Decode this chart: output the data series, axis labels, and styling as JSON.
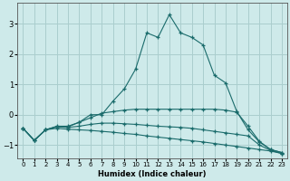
{
  "xlabel": "Humidex (Indice chaleur)",
  "bg_color": "#ceeaea",
  "grid_color": "#aacece",
  "line_color": "#1a6b6b",
  "xlim": [
    -0.5,
    23.5
  ],
  "ylim": [
    -1.45,
    3.7
  ],
  "xticks": [
    0,
    1,
    2,
    3,
    4,
    5,
    6,
    7,
    8,
    9,
    10,
    11,
    12,
    13,
    14,
    15,
    16,
    17,
    18,
    19,
    20,
    21,
    22,
    23
  ],
  "yticks": [
    -1,
    0,
    1,
    2,
    3
  ],
  "lines": [
    {
      "x": [
        0,
        1,
        2,
        3,
        4,
        5,
        6,
        7,
        8,
        9,
        10,
        11,
        12,
        13,
        14,
        15,
        16,
        17,
        18,
        19,
        20,
        21,
        22,
        23
      ],
      "y": [
        -0.45,
        -0.85,
        -0.5,
        -0.4,
        -0.4,
        -0.25,
        0.0,
        0.0,
        0.45,
        0.85,
        1.5,
        2.7,
        2.55,
        3.3,
        2.7,
        2.55,
        2.3,
        1.3,
        1.05,
        0.1,
        -0.5,
        -0.9,
        -1.15,
        -1.25
      ]
    },
    {
      "x": [
        0,
        1,
        2,
        3,
        4,
        5,
        6,
        7,
        8,
        9,
        10,
        11,
        12,
        13,
        14,
        15,
        16,
        17,
        18,
        19,
        20,
        21,
        22,
        23
      ],
      "y": [
        -0.45,
        -0.85,
        -0.5,
        -0.38,
        -0.38,
        -0.25,
        -0.1,
        0.05,
        0.1,
        0.15,
        0.18,
        0.18,
        0.18,
        0.18,
        0.18,
        0.18,
        0.18,
        0.18,
        0.15,
        0.08,
        -0.38,
        -0.88,
        -1.15,
        -1.25
      ]
    },
    {
      "x": [
        0,
        1,
        2,
        3,
        4,
        5,
        6,
        7,
        8,
        9,
        10,
        11,
        12,
        13,
        14,
        15,
        16,
        17,
        18,
        19,
        20,
        21,
        22,
        23
      ],
      "y": [
        -0.45,
        -0.85,
        -0.5,
        -0.4,
        -0.42,
        -0.38,
        -0.32,
        -0.28,
        -0.28,
        -0.3,
        -0.32,
        -0.35,
        -0.38,
        -0.4,
        -0.42,
        -0.45,
        -0.5,
        -0.55,
        -0.6,
        -0.65,
        -0.7,
        -1.0,
        -1.18,
        -1.28
      ]
    },
    {
      "x": [
        0,
        1,
        2,
        3,
        4,
        5,
        6,
        7,
        8,
        9,
        10,
        11,
        12,
        13,
        14,
        15,
        16,
        17,
        18,
        19,
        20,
        21,
        22,
        23
      ],
      "y": [
        -0.45,
        -0.85,
        -0.5,
        -0.45,
        -0.48,
        -0.5,
        -0.52,
        -0.55,
        -0.58,
        -0.62,
        -0.65,
        -0.7,
        -0.74,
        -0.78,
        -0.82,
        -0.86,
        -0.9,
        -0.95,
        -1.0,
        -1.05,
        -1.1,
        -1.15,
        -1.2,
        -1.28
      ]
    }
  ]
}
